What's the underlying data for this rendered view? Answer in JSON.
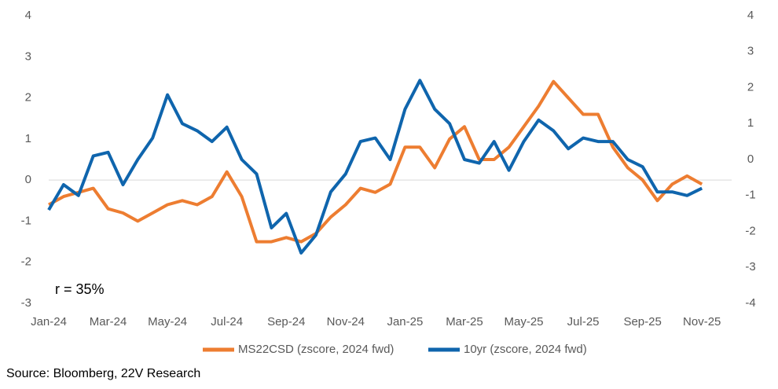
{
  "chart_data": {
    "type": "line",
    "annotation": "r =  35%",
    "source": "Source: Bloomberg, 22V Research",
    "x": [
      0,
      0.5,
      1,
      1.5,
      2,
      2.5,
      3,
      3.5,
      4,
      4.5,
      5,
      5.5,
      6,
      6.5,
      7,
      7.5,
      8,
      8.5,
      9,
      9.5,
      10,
      10.5,
      11,
      11.5,
      12,
      12.5,
      13,
      13.5,
      14,
      14.5,
      15,
      15.5,
      16,
      16.5,
      17,
      17.5,
      18,
      18.5,
      19,
      19.5,
      20,
      20.5,
      21,
      21.5,
      22
    ],
    "xlim": [
      0,
      23
    ],
    "xticks": [
      {
        "value": 0,
        "label": "Jan-24"
      },
      {
        "value": 2,
        "label": "Mar-24"
      },
      {
        "value": 4,
        "label": "May-24"
      },
      {
        "value": 6,
        "label": "Jul-24"
      },
      {
        "value": 8,
        "label": "Sep-24"
      },
      {
        "value": 10,
        "label": "Nov-24"
      },
      {
        "value": 12,
        "label": "Jan-25"
      },
      {
        "value": 14,
        "label": "Mar-25"
      },
      {
        "value": 16,
        "label": "May-25"
      },
      {
        "value": 18,
        "label": "Jul-25"
      },
      {
        "value": 20,
        "label": "Sep-25"
      },
      {
        "value": 22,
        "label": "Nov-25"
      }
    ],
    "ylim": [
      -3,
      4
    ],
    "yticks": [
      -3,
      -2,
      -1,
      0,
      1,
      2,
      3,
      4
    ],
    "y2lim": [
      -4,
      4
    ],
    "y2ticks": [
      -4,
      -3,
      -2,
      -1,
      0,
      1,
      2,
      3,
      4
    ],
    "legend": "bottom",
    "series": [
      {
        "name": "MS22CSD  (zscore, 2024 fwd)",
        "color": "#ED7D31",
        "values": [
          -0.6,
          -0.4,
          -0.3,
          -0.2,
          -0.7,
          -0.8,
          -1.0,
          -0.8,
          -0.6,
          -0.5,
          -0.6,
          -0.4,
          0.2,
          -0.4,
          -1.5,
          -1.5,
          -1.4,
          -1.5,
          -1.3,
          -0.9,
          -0.6,
          -0.2,
          -0.3,
          -0.1,
          0.8,
          0.8,
          0.3,
          1.0,
          1.3,
          0.5,
          0.5,
          0.8,
          1.3,
          1.8,
          2.4,
          2.0,
          1.6,
          1.6,
          0.8,
          0.3,
          0.0,
          -0.5,
          -0.1,
          0.1,
          -0.1
        ]
      },
      {
        "name": "10yr (zscore, 2024 fwd)",
        "color": "#0F65AD",
        "axis": "y2",
        "values": [
          -1.4,
          -0.7,
          -1.0,
          0.1,
          0.2,
          -0.7,
          0.0,
          0.6,
          1.8,
          1.0,
          0.8,
          0.5,
          0.9,
          0.0,
          -0.4,
          -1.9,
          -1.5,
          -2.6,
          -2.1,
          -0.9,
          -0.4,
          0.5,
          0.6,
          0.0,
          1.4,
          2.2,
          1.4,
          1.0,
          0.0,
          -0.1,
          0.5,
          -0.3,
          0.5,
          1.1,
          0.8,
          0.3,
          0.6,
          0.5,
          0.5,
          0.0,
          -0.2,
          -0.9,
          -0.9,
          -1.0,
          -0.8
        ]
      }
    ]
  }
}
